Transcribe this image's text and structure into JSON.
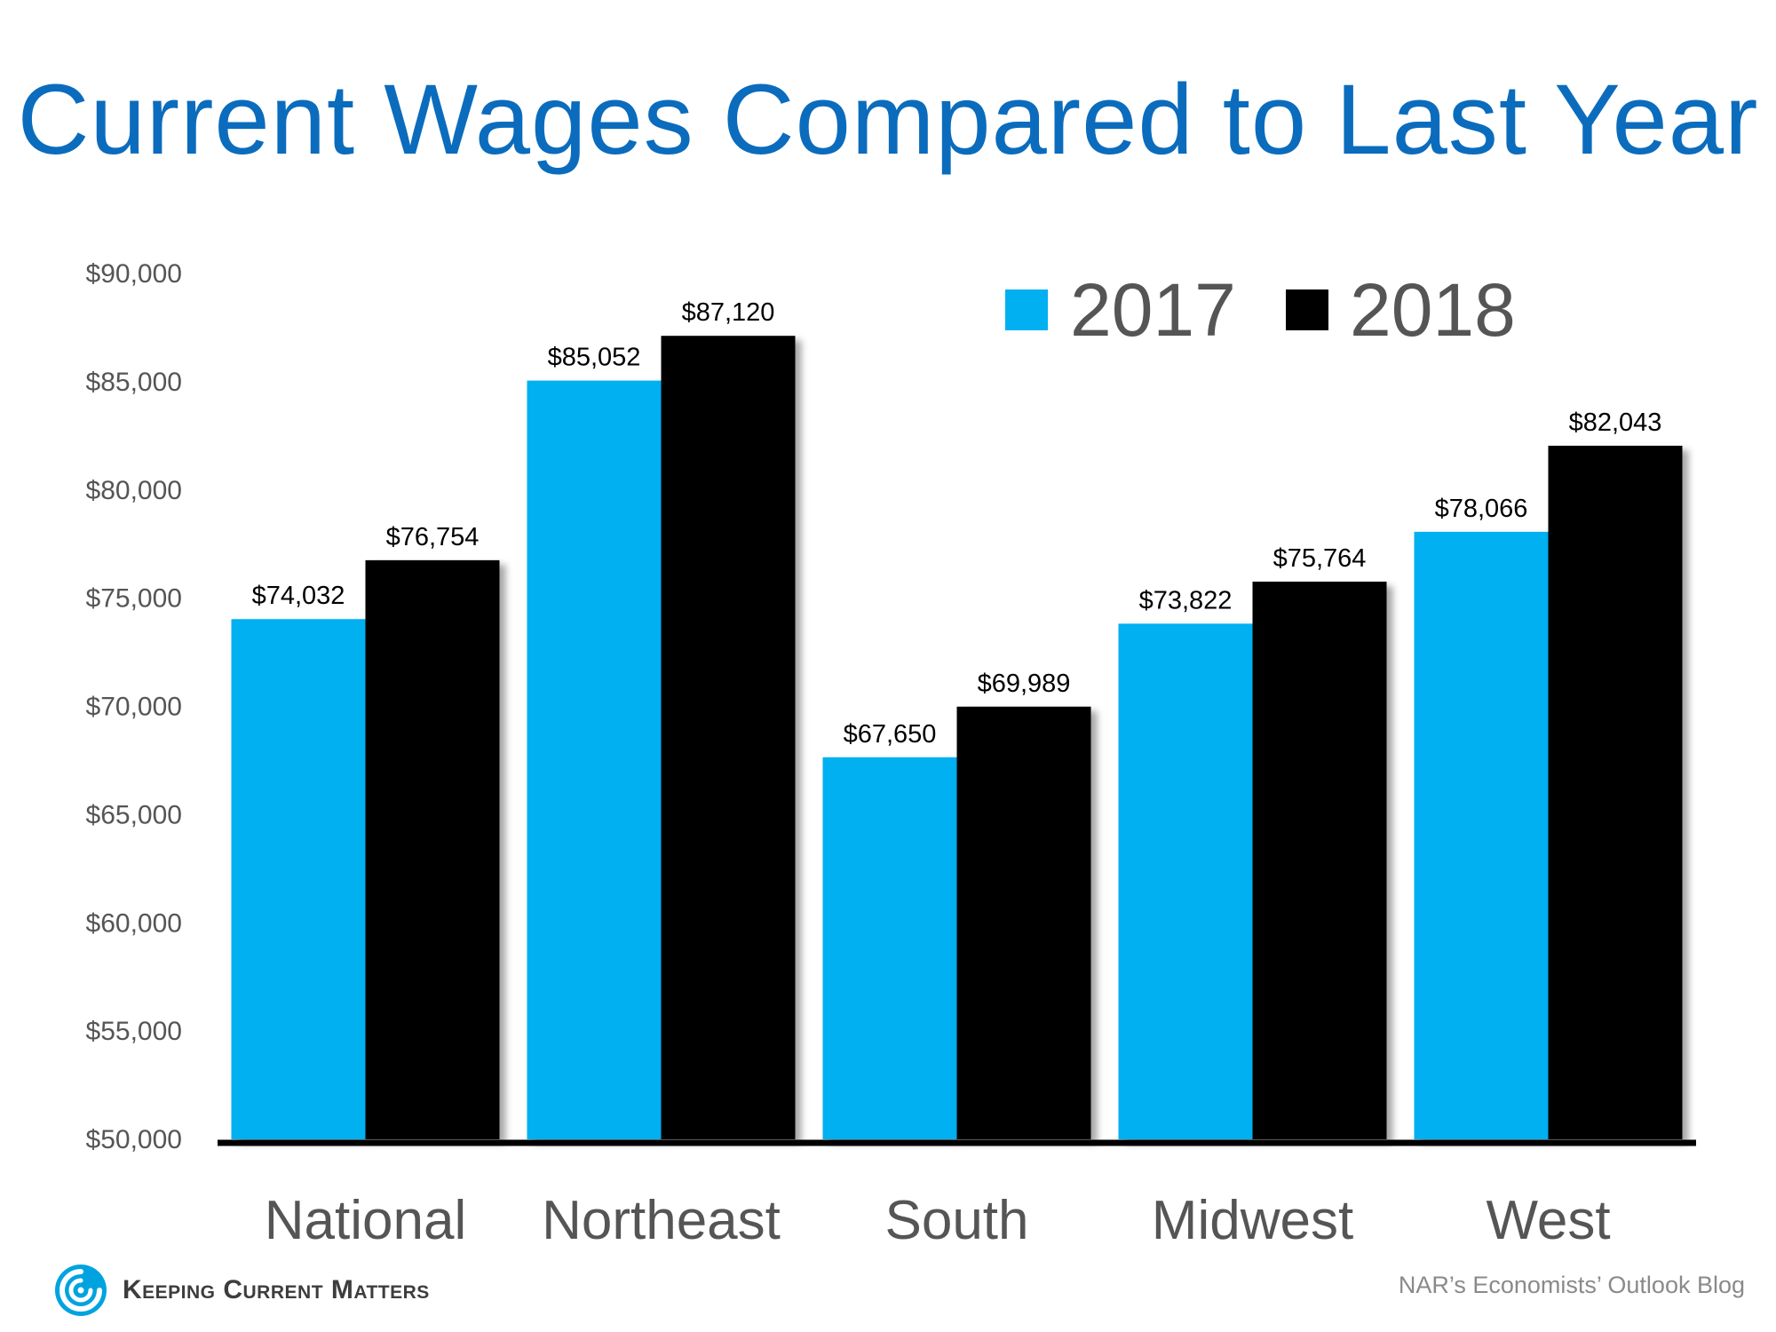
{
  "chart_data": {
    "type": "bar",
    "title": "Current Wages Compared to Last Year",
    "categories": [
      "National",
      "Northeast",
      "South",
      "Midwest",
      "West"
    ],
    "series": [
      {
        "name": "2017",
        "color": "#00b0f0",
        "values": [
          74032,
          85052,
          67650,
          73822,
          78066
        ],
        "labels": [
          "$74,032",
          "$85,052",
          "$67,650",
          "$73,822",
          "$78,066"
        ]
      },
      {
        "name": "2018",
        "color": "#000000",
        "values": [
          76754,
          87120,
          69989,
          75764,
          82043
        ],
        "labels": [
          "$76,754",
          "$87,120",
          "$69,989",
          "$75,764",
          "$82,043"
        ]
      }
    ],
    "ylim": [
      50000,
      90000
    ],
    "yticks": [
      50000,
      55000,
      60000,
      65000,
      70000,
      75000,
      80000,
      85000,
      90000
    ],
    "ytick_labels": [
      "$50,000",
      "$55,000",
      "$60,000",
      "$65,000",
      "$70,000",
      "$75,000",
      "$80,000",
      "$85,000",
      "$90,000"
    ],
    "xlabel": "",
    "ylabel": "",
    "legend": "top-right",
    "grid": false
  },
  "footer": {
    "brand": "Keeping Current Matters",
    "source": "NAR’s Economists’ Outlook Blog"
  }
}
